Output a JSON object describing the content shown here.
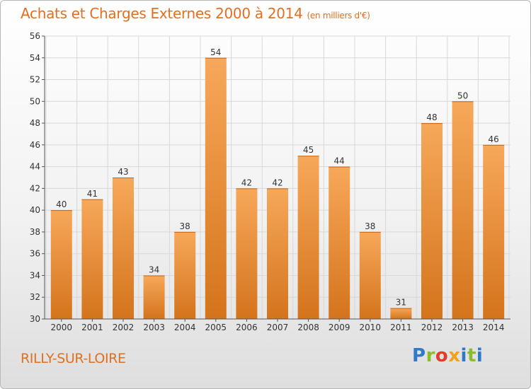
{
  "header": {
    "title": "Achats et Charges Externes 2000 à 2014",
    "subtitle": "(en milliers d'€)"
  },
  "footer": {
    "commune": "RILLY-SUR-LOIRE",
    "logo_letters": [
      "P",
      "r",
      "o",
      "x",
      "i",
      "t",
      "i"
    ]
  },
  "colors": {
    "bar_top": "#f7a85a",
    "bar_bottom": "#d4741c",
    "accent_text": "#e07020",
    "grid": "#d8d8d8"
  },
  "chart_data": {
    "type": "bar",
    "title": "Achats et Charges Externes 2000 à 2014",
    "subtitle": "(en milliers d'€)",
    "categories": [
      "2000",
      "2001",
      "2002",
      "2003",
      "2004",
      "2005",
      "2006",
      "2007",
      "2008",
      "2009",
      "2010",
      "2011",
      "2012",
      "2013",
      "2014"
    ],
    "values": [
      40,
      41,
      43,
      34,
      38,
      54,
      42,
      42,
      45,
      44,
      38,
      31,
      48,
      50,
      46
    ],
    "ylim": [
      30,
      56
    ],
    "yticks": [
      30,
      32,
      34,
      36,
      38,
      40,
      42,
      44,
      46,
      48,
      50,
      52,
      54,
      56
    ],
    "grid": true,
    "legend": "none"
  }
}
